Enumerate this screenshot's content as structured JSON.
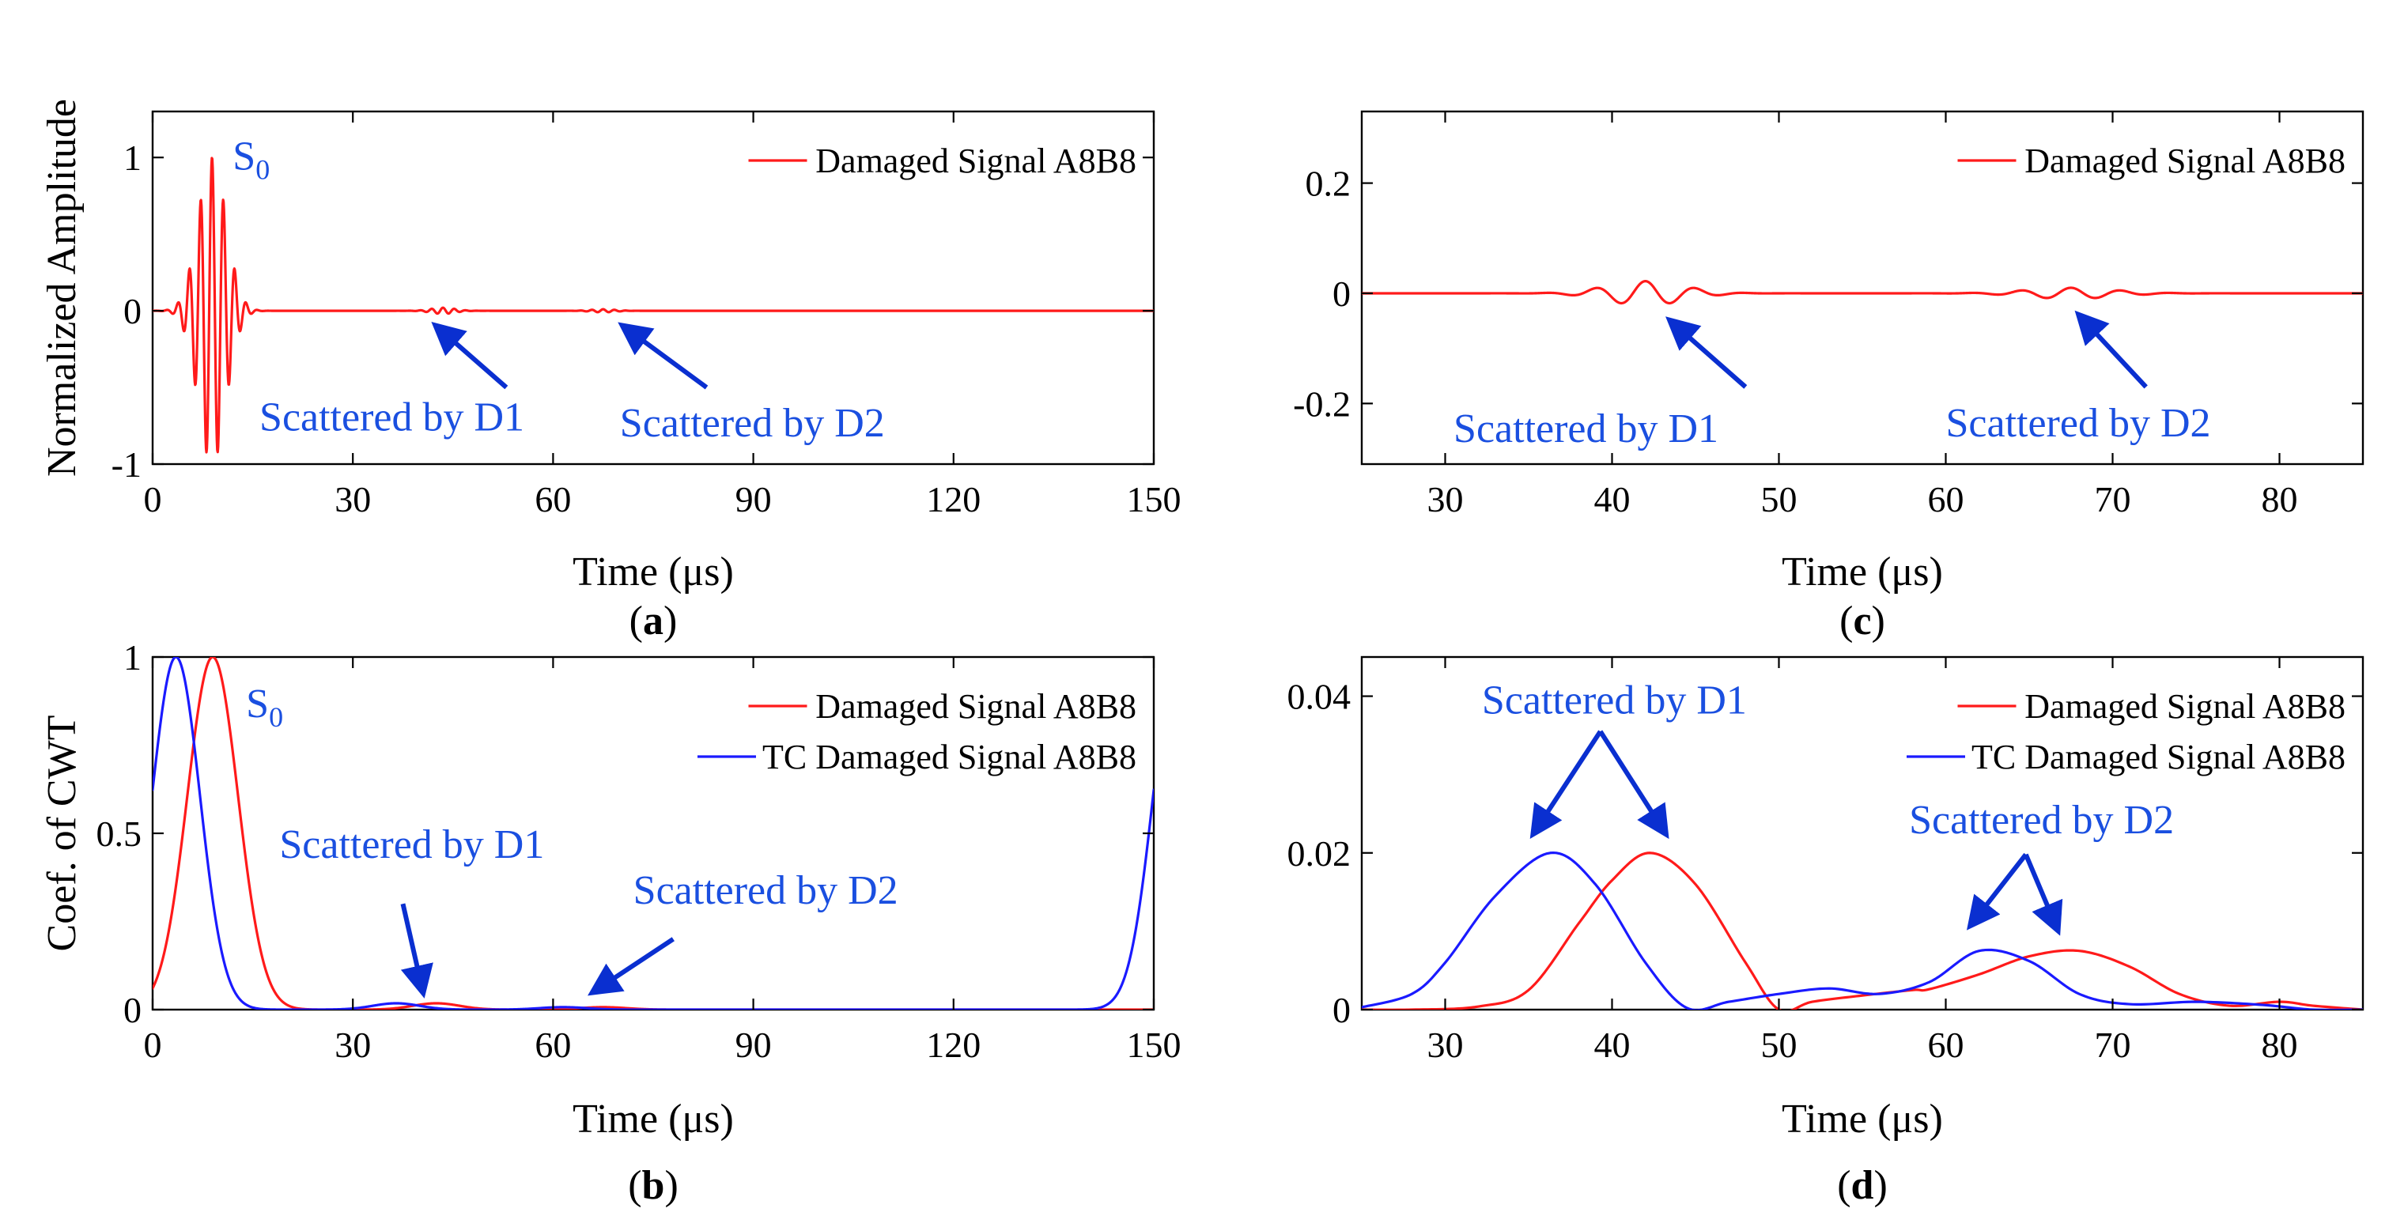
{
  "colors": {
    "red": "#ff1a1a",
    "blue": "#1a1aff",
    "annotation": "#1a4fe0",
    "arrow": "#0a2fd0"
  },
  "chart_data": [
    {
      "id": "a",
      "type": "line",
      "panel_label": "a",
      "xlabel": "Time (μs)",
      "ylabel": "Normalized Amplitude",
      "xlim": [
        0,
        150
      ],
      "ylim": [
        -1,
        1.3
      ],
      "xticks": [
        0,
        30,
        60,
        90,
        120,
        150
      ],
      "yticks": [
        -1,
        0,
        1
      ],
      "xtick_labels": [
        "0",
        "30",
        "60",
        "90",
        "120",
        "150"
      ],
      "ytick_labels": [
        "-1",
        "0",
        "1"
      ],
      "legend": {
        "position": "top-right",
        "entries": [
          "Damaged Signal A8B8"
        ]
      },
      "series": [
        {
          "name": "Damaged Signal A8B8",
          "color": "red",
          "kind": "burst",
          "x": [
            0,
            150
          ],
          "bursts": [
            {
              "center": 8.9,
              "amplitude": 1.0,
              "sigma": 2.1,
              "period": 1.7
            },
            {
              "center": 43.5,
              "amplitude": 0.02,
              "sigma": 1.8,
              "period": 1.7
            },
            {
              "center": 67.5,
              "amplitude": 0.01,
              "sigma": 1.8,
              "period": 1.7
            }
          ]
        }
      ],
      "annotations": [
        {
          "text": "S",
          "sub": "0",
          "x": 12,
          "y": 0.92
        },
        {
          "text": "Scattered by D1",
          "x": 16,
          "y": -0.78,
          "arrow_from": [
            53,
            -0.5
          ],
          "arrow_to": [
            42.5,
            -0.1
          ]
        },
        {
          "text": "Scattered by D2",
          "x": 70,
          "y": -0.82,
          "arrow_from": [
            83,
            -0.5
          ],
          "arrow_to": [
            70.5,
            -0.1
          ]
        }
      ]
    },
    {
      "id": "b",
      "type": "line",
      "panel_label": "b",
      "xlabel": "Time (μs)",
      "ylabel": "Coef. of CWT",
      "xlim": [
        0,
        150
      ],
      "ylim": [
        0,
        1
      ],
      "xticks": [
        0,
        30,
        60,
        90,
        120,
        150
      ],
      "yticks": [
        0,
        0.5,
        1
      ],
      "xtick_labels": [
        "0",
        "30",
        "60",
        "90",
        "120",
        "150"
      ],
      "ytick_labels": [
        "0",
        "0.5",
        "1"
      ],
      "legend": {
        "position": "top-right",
        "entries": [
          "Damaged Signal A8B8",
          "TC Damaged Signal A8B8"
        ]
      },
      "series": [
        {
          "name": "Damaged Signal A8B8",
          "color": "red",
          "kind": "envelope",
          "x": [
            0,
            150
          ],
          "peaks": [
            {
              "center": 9.0,
              "height": 1.0,
              "sigma": 3.8
            },
            {
              "center": 42.5,
              "height": 0.018,
              "sigma": 3.5
            },
            {
              "center": 67.5,
              "height": 0.007,
              "sigma": 3.5
            }
          ]
        },
        {
          "name": "TC Damaged Signal A8B8",
          "color": "blue",
          "kind": "envelope",
          "x": [
            0,
            150
          ],
          "peaks": [
            {
              "center": 3.5,
              "height": 1.0,
              "sigma": 3.6
            },
            {
              "center": 36.5,
              "height": 0.018,
              "sigma": 3.5
            },
            {
              "center": 61.5,
              "height": 0.007,
              "sigma": 3.5
            },
            {
              "center": 153.5,
              "height": 1.0,
              "sigma": 3.6
            }
          ]
        }
      ],
      "annotations": [
        {
          "text": "S",
          "sub": "0",
          "x": 14,
          "y": 0.83
        },
        {
          "text": "Scattered by D1",
          "x": 19,
          "y": 0.43,
          "arrow_from": [
            37.5,
            0.3
          ],
          "arrow_to": [
            40.5,
            0.05
          ]
        },
        {
          "text": "Scattered by D2",
          "x": 72,
          "y": 0.3,
          "arrow_from": [
            78,
            0.2
          ],
          "arrow_to": [
            66,
            0.05
          ]
        }
      ]
    },
    {
      "id": "c",
      "type": "line",
      "panel_label": "c",
      "xlabel": "Time (μs)",
      "ylabel": "",
      "xlim": [
        25,
        85
      ],
      "ylim": [
        -0.31,
        0.33
      ],
      "xticks": [
        30,
        40,
        50,
        60,
        70,
        80
      ],
      "yticks": [
        -0.2,
        0,
        0.2
      ],
      "xtick_labels": [
        "30",
        "40",
        "50",
        "60",
        "70",
        "80"
      ],
      "ytick_labels": [
        "-0.2",
        "0",
        "0.2"
      ],
      "legend": {
        "position": "top-right",
        "entries": [
          "Damaged Signal A8B8"
        ]
      },
      "series": [
        {
          "name": "Damaged Signal A8B8",
          "color": "red",
          "kind": "burst",
          "x": [
            25,
            85
          ],
          "bursts": [
            {
              "center": 42.0,
              "amplitude": 0.022,
              "sigma": 2.3,
              "period": 3.0
            },
            {
              "center": 67.5,
              "amplitude": 0.01,
              "sigma": 2.6,
              "period": 3.0
            }
          ]
        }
      ],
      "annotations": [
        {
          "text": "Scattered by D1",
          "x": 30.5,
          "y": -0.27,
          "arrow_from": [
            48,
            -0.17
          ],
          "arrow_to": [
            43.5,
            -0.05
          ]
        },
        {
          "text": "Scattered by D2",
          "x": 60,
          "y": -0.26,
          "arrow_from": [
            72,
            -0.17
          ],
          "arrow_to": [
            68,
            -0.04
          ]
        }
      ]
    },
    {
      "id": "d",
      "type": "line",
      "panel_label": "d",
      "xlabel": "Time (μs)",
      "ylabel": "",
      "xlim": [
        25,
        85
      ],
      "ylim": [
        0,
        0.045
      ],
      "xticks": [
        30,
        40,
        50,
        60,
        70,
        80
      ],
      "yticks": [
        0,
        0.02,
        0.04
      ],
      "xtick_labels": [
        "30",
        "40",
        "50",
        "60",
        "70",
        "80"
      ],
      "ytick_labels": [
        "0",
        "0.02",
        "0.04"
      ],
      "legend": {
        "position": "top-right",
        "entries": [
          "Damaged Signal A8B8",
          "TC Damaged Signal A8B8"
        ]
      },
      "series": [
        {
          "name": "Damaged Signal A8B8",
          "color": "red",
          "kind": "points",
          "x": [
            25,
            28,
            32,
            35,
            38,
            40,
            42.3,
            45,
            48,
            50,
            52,
            55,
            58,
            59,
            62,
            65,
            68,
            71,
            74,
            77,
            80,
            82,
            85
          ],
          "y": [
            0.0,
            0.0,
            0.0004,
            0.0025,
            0.011,
            0.0165,
            0.02,
            0.016,
            0.006,
            0.0,
            0.001,
            0.0018,
            0.0025,
            0.0026,
            0.0045,
            0.0068,
            0.0075,
            0.0055,
            0.002,
            0.0005,
            0.001,
            0.0005,
            0.0
          ]
        },
        {
          "name": "TC Damaged Signal A8B8",
          "color": "blue",
          "kind": "points",
          "x": [
            25,
            28,
            30,
            33,
            36.3,
            39,
            42,
            44.5,
            47,
            50,
            53,
            56,
            59,
            62,
            65,
            68,
            71,
            75,
            79,
            82,
            85
          ],
          "y": [
            0.0003,
            0.002,
            0.006,
            0.0145,
            0.02,
            0.016,
            0.006,
            0.0002,
            0.001,
            0.002,
            0.0027,
            0.002,
            0.0035,
            0.0075,
            0.0062,
            0.002,
            0.0007,
            0.001,
            0.0006,
            0.0,
            0.0
          ]
        }
      ],
      "annotations": [
        {
          "text": "Scattered by D1",
          "x": 32.2,
          "y": 0.0378,
          "arrow_from": [
            39.3,
            0.0355
          ],
          "arrow_to_list": [
            [
              35.3,
              0.0225
            ],
            [
              43.2,
              0.0225
            ]
          ]
        },
        {
          "text": "Scattered by D2",
          "x": 57.8,
          "y": 0.0225,
          "arrow_from": [
            64.8,
            0.0198
          ],
          "arrow_to_list": [
            [
              61.5,
              0.0108
            ],
            [
              66.7,
              0.0102
            ]
          ]
        }
      ]
    }
  ]
}
